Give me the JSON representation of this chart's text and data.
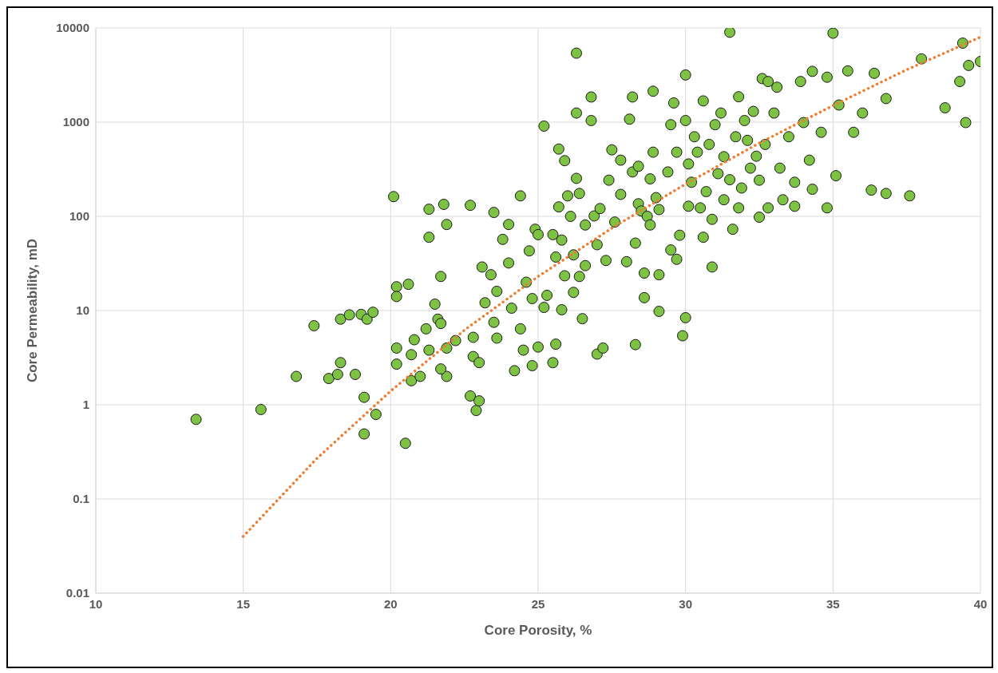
{
  "chart_data": {
    "type": "scatter",
    "xlabel": "Core Porosity, %",
    "ylabel": "Core Permeability, mD",
    "log": "y",
    "grid": true,
    "marker": "circle",
    "xlim": [
      10,
      40
    ],
    "xticks": [
      10,
      15,
      20,
      25,
      30,
      35,
      40
    ],
    "ylim": [
      0.01,
      10000
    ],
    "yticks": [
      0.01,
      0.1,
      1,
      10,
      100,
      1000,
      10000
    ],
    "series": [
      {
        "color": "#7dc242",
        "x": [
          13.4,
          15.6,
          16.8,
          17.4,
          17.9,
          18.2,
          18.3,
          18.3,
          18.6,
          18.8,
          19.0,
          19.1,
          19.1,
          19.2,
          19.4,
          19.5,
          20.1,
          20.2,
          20.2,
          20.2,
          20.2,
          20.5,
          20.6,
          20.7,
          20.7,
          20.8,
          21.0,
          21.2,
          21.3,
          21.3,
          21.3,
          21.5,
          21.6,
          21.7,
          21.8,
          21.9,
          21.9,
          21.7,
          21.9,
          22.2,
          22.7,
          22.7,
          22.8,
          22.8,
          22.9,
          23.0,
          23.0,
          23.1,
          23.2,
          23.4,
          23.5,
          23.5,
          23.6,
          23.6,
          23.8,
          24.0,
          24.0,
          24.1,
          24.2,
          24.4,
          24.4,
          24.5,
          24.6,
          24.7,
          24.8,
          24.9,
          25.0,
          25.0,
          25.2,
          25.2,
          25.3,
          25.5,
          25.5,
          25.6,
          25.6,
          25.7,
          25.7,
          25.8,
          25.8,
          25.9,
          25.9,
          26.0,
          26.1,
          26.2,
          26.2,
          26.3,
          26.3,
          26.3,
          26.4,
          26.4,
          26.5,
          26.6,
          26.6,
          26.8,
          26.8,
          26.9,
          27.0,
          27.0,
          27.1,
          27.2,
          27.3,
          27.4,
          27.5,
          27.6,
          27.8,
          27.8,
          28.0,
          28.1,
          28.2,
          28.2,
          28.3,
          28.3,
          28.4,
          28.4,
          28.5,
          28.6,
          28.6,
          28.7,
          28.8,
          28.8,
          28.9,
          28.9,
          29.0,
          29.1,
          29.1,
          29.1,
          30.0,
          29.9,
          29.4,
          29.5,
          29.5,
          29.6,
          29.7,
          29.7,
          29.8,
          30.0,
          30.0,
          30.1,
          30.1,
          30.2,
          30.3,
          30.6,
          30.4,
          30.5,
          30.6,
          30.7,
          30.8,
          30.9,
          30.9,
          31.0,
          31.1,
          31.2,
          31.3,
          31.3,
          31.5,
          31.5,
          31.6,
          31.7,
          31.8,
          31.8,
          31.9,
          32.0,
          32.1,
          32.2,
          32.3,
          32.4,
          32.5,
          32.5,
          32.6,
          32.7,
          32.8,
          32.8,
          33.0,
          33.1,
          33.2,
          33.3,
          33.5,
          33.7,
          33.7,
          33.9,
          34.0,
          34.2,
          34.3,
          34.3,
          34.6,
          34.8,
          34.8,
          35.0,
          35.1,
          35.2,
          35.5,
          35.7,
          36.0,
          36.3,
          36.4,
          36.8,
          36.8,
          37.6,
          38.0,
          38.8,
          39.3,
          39.4,
          39.5,
          39.6,
          40.0,
          21.7,
          24.8
        ],
        "values": [
          0.7,
          0.89,
          2.0,
          6.9,
          1.9,
          2.1,
          2.8,
          8.1,
          9.0,
          2.1,
          9.1,
          1.2,
          0.49,
          8.1,
          9.6,
          0.79,
          162,
          17.9,
          14.1,
          4.0,
          2.7,
          0.39,
          19,
          1.8,
          3.4,
          4.9,
          2.0,
          6.4,
          119,
          60,
          3.8,
          11.7,
          8.1,
          23,
          134,
          82,
          2.0,
          7.3,
          4.0,
          4.8,
          131,
          1.24,
          5.2,
          3.25,
          0.87,
          1.1,
          2.8,
          29,
          12.1,
          24,
          110,
          7.5,
          16,
          5.1,
          57,
          82,
          32,
          10.6,
          2.3,
          165,
          6.4,
          3.8,
          20,
          43,
          13.4,
          73,
          64,
          4.1,
          908,
          10.8,
          14.5,
          64,
          2.8,
          37,
          4.4,
          518,
          126,
          56,
          10.2,
          23.4,
          390,
          165,
          100,
          39,
          15.6,
          253,
          1250,
          5400,
          175,
          23,
          8.2,
          30,
          81,
          1850,
          1040,
          101,
          3.45,
          50,
          121,
          4.0,
          34,
          242,
          508,
          87,
          171,
          395,
          33,
          1076,
          296,
          1850,
          52,
          4.35,
          340,
          136,
          114,
          25,
          13.7,
          100,
          250,
          81,
          2130,
          480,
          158,
          118,
          24,
          9.8,
          8.4,
          5.4,
          296,
          940,
          44,
          1600,
          35,
          480,
          63,
          3170,
          1040,
          360,
          128,
          230,
          700,
          1680,
          480,
          123,
          60,
          183,
          580,
          29,
          93,
          940,
          284,
          1250,
          150,
          430,
          9000,
          245,
          73,
          700,
          1860,
          123,
          200,
          1040,
          640,
          325,
          1300,
          435,
          98,
          242,
          2900,
          580,
          123,
          2700,
          1250,
          2350,
          325,
          150,
          700,
          230,
          128,
          2700,
          990,
          395,
          194,
          3460,
          780,
          3000,
          123,
          8800,
          270,
          1520,
          3500,
          780,
          1250,
          190,
          3300,
          175,
          1780,
          165,
          4700,
          1420,
          2700,
          6900,
          990,
          4000,
          4400,
          2.4,
          2.6
        ]
      },
      {
        "type": "line",
        "color": "#ed7d31",
        "marker": "none",
        "line_style": "dotted",
        "x": [
          15,
          17.5,
          20,
          22.5,
          25,
          27.5,
          30,
          32.5,
          35,
          37.5,
          40
        ],
        "values": [
          0.04,
          0.27,
          1.4,
          6.2,
          23,
          75,
          220,
          600,
          1500,
          3600,
          8000
        ]
      }
    ]
  }
}
